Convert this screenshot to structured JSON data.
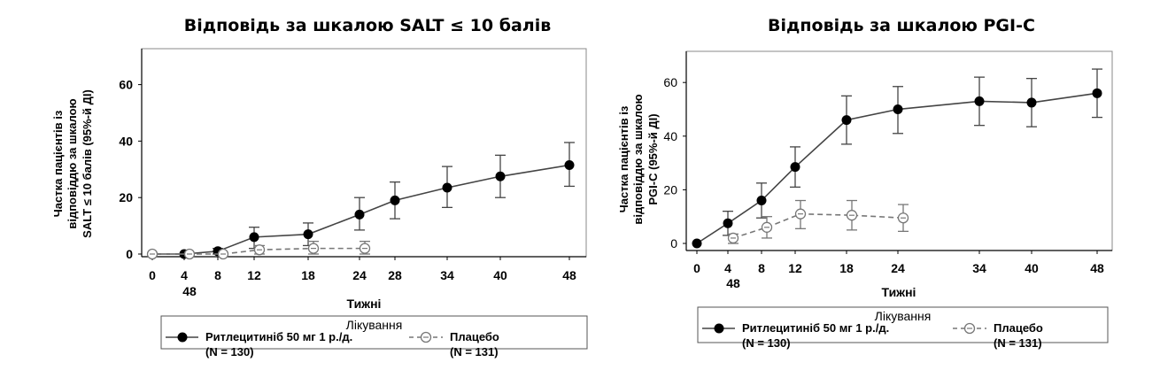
{
  "chart_data": [
    {
      "type": "line",
      "title": "Відповідь за шкалою SALT ≤ 10 балів",
      "xlabel": "Тижні",
      "ylabel_lines": [
        "Частка пацієнтів із",
        "відповіддю за шкалою",
        "SALT ≤ 10 балів (95%-й ДІ)"
      ],
      "ylim": [
        0,
        70
      ],
      "yticks": [
        "0",
        "20",
        "40",
        "60"
      ],
      "x_ticks": [
        "0",
        "4",
        "8",
        "12",
        "18",
        "24",
        "28",
        "34",
        "40",
        "48"
      ],
      "x_extra_label": "48",
      "series": [
        {
          "name": "Ритлецитиніб 50 мг 1 р./д.",
          "n_label": "(N = 130)",
          "x": [
            0,
            4,
            8,
            12,
            18,
            24,
            28,
            34,
            40,
            48
          ],
          "values": [
            0,
            0,
            1,
            6,
            7,
            14,
            19,
            23.5,
            27.5,
            31.5
          ],
          "lower": [
            0,
            0,
            0,
            2,
            3,
            8.5,
            12.5,
            16.5,
            20,
            24
          ],
          "upper": [
            0,
            0,
            2,
            9.5,
            11,
            20,
            25.5,
            31,
            35,
            39.5
          ]
        },
        {
          "name": "Плацебо",
          "n_label": "(N = 131)",
          "x": [
            0,
            4,
            8,
            12,
            18,
            24
          ],
          "values": [
            0,
            0,
            0,
            1.5,
            2,
            2
          ],
          "lower": [
            0,
            0,
            0,
            0,
            0,
            0
          ],
          "upper": [
            0,
            0,
            0,
            3,
            4.5,
            4.5
          ]
        }
      ]
    },
    {
      "type": "line",
      "title": "Відповідь за шкалою PGI-C",
      "xlabel": "Тижні",
      "ylabel_lines": [
        "Частка пацієнтів із",
        "відповіддю за шкалою",
        "PGI-C (95%-й ДІ)"
      ],
      "ylim": [
        0,
        68
      ],
      "yticks": [
        "0",
        "20",
        "40",
        "60"
      ],
      "x_ticks": [
        "0",
        "4",
        "8",
        "12",
        "18",
        "24",
        "34",
        "40",
        "48"
      ],
      "x_extra_label": "48",
      "series": [
        {
          "name": "Ритлецитиніб 50 мг 1 р./д.",
          "n_label": "(N = 130)",
          "x": [
            0,
            4,
            8,
            12,
            18,
            24,
            34,
            40,
            48
          ],
          "values": [
            0,
            7.5,
            16,
            28.5,
            46,
            50,
            53,
            52.5,
            56
          ],
          "lower": [
            0,
            3,
            9.5,
            21,
            37,
            41,
            44,
            43.5,
            47
          ],
          "upper": [
            0,
            12,
            22.5,
            36,
            55,
            58.5,
            62,
            61.5,
            65
          ]
        },
        {
          "name": "Плацебо",
          "n_label": "(N = 131)",
          "x": [
            4,
            8,
            12,
            18,
            24
          ],
          "values": [
            2,
            6,
            11,
            10.5,
            9.5
          ],
          "lower": [
            0,
            2,
            5.5,
            5,
            4.5
          ],
          "upper": [
            3.5,
            10,
            16,
            16,
            14.5
          ]
        }
      ]
    }
  ],
  "legend": {
    "title": "Лікування"
  }
}
